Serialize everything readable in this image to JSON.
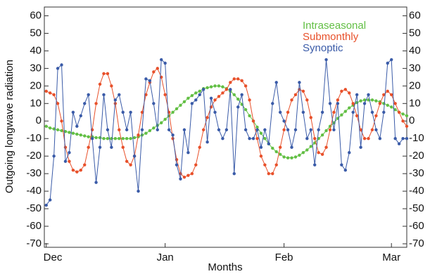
{
  "chart_data": {
    "type": "line",
    "xlabel": "Months",
    "ylabel": "Outgoing longwave radiation",
    "x": [
      0,
      1,
      2,
      3,
      4,
      5,
      6,
      7,
      8,
      9,
      10,
      11,
      12,
      13,
      14,
      15,
      16,
      17,
      18,
      19,
      20,
      21,
      22,
      23,
      24,
      25,
      26,
      27,
      28,
      29,
      30,
      31,
      32,
      33,
      34,
      35,
      36,
      37,
      38,
      39,
      40,
      41,
      42,
      43,
      44,
      45,
      46,
      47,
      48,
      49,
      50,
      51,
      52,
      53,
      54,
      55,
      56,
      57,
      58,
      59,
      60,
      61,
      62,
      63,
      64,
      65,
      66,
      67,
      68,
      69,
      70,
      71,
      72,
      73,
      74,
      75,
      76,
      77,
      78,
      79,
      80,
      81,
      82,
      83,
      84,
      85,
      86,
      87,
      88,
      89,
      90,
      91,
      92,
      93,
      94
    ],
    "xlim": [
      -0.5,
      94
    ],
    "xticks": [
      {
        "value": 0,
        "label": "Dec"
      },
      {
        "value": 31,
        "label": "Jan"
      },
      {
        "value": 62,
        "label": "Feb"
      },
      {
        "value": 90,
        "label": "Mar"
      }
    ],
    "ylim": [
      -72,
      65
    ],
    "yticks": [
      -70,
      -60,
      -50,
      -40,
      -30,
      -20,
      -10,
      0,
      10,
      20,
      30,
      40,
      50,
      60
    ],
    "legend": "upper right",
    "series": [
      {
        "name": "Intraseasonal",
        "color": "#62bf44",
        "values": [
          -3,
          -4,
          -4.5,
          -5,
          -5.5,
          -6,
          -6.5,
          -7,
          -7.5,
          -8,
          -8.5,
          -9,
          -9,
          -9.5,
          -9.5,
          -10,
          -10,
          -10,
          -10,
          -10,
          -10,
          -10,
          -10,
          -9.5,
          -9,
          -8,
          -7,
          -5.5,
          -4,
          -2.5,
          -1,
          1,
          3,
          5,
          7,
          9,
          11,
          13,
          14.5,
          16,
          17,
          18.5,
          19,
          19.5,
          20,
          20,
          19.5,
          18.5,
          17,
          15,
          12.5,
          9.5,
          6.5,
          3,
          0,
          -3.5,
          -7,
          -10,
          -13,
          -15.5,
          -17.5,
          -19,
          -20.5,
          -21,
          -21,
          -20.5,
          -19.5,
          -18,
          -16.5,
          -14.5,
          -12.5,
          -10,
          -8,
          -5.5,
          -3,
          -1,
          1.5,
          3.5,
          5.5,
          7.5,
          9,
          10.5,
          11.5,
          12,
          12,
          12,
          11.5,
          11,
          10,
          9,
          8,
          6.5,
          5,
          4,
          3
        ]
      },
      {
        "name": "Submonthly",
        "color": "#e8502a",
        "values": [
          17,
          16,
          15,
          10,
          0,
          -15,
          -23,
          -28,
          -29,
          -28,
          -25,
          -15,
          -5,
          10,
          21,
          27,
          27,
          20,
          10,
          -5,
          -15,
          -23,
          -25,
          -20,
          -8,
          5,
          15,
          22,
          28,
          30,
          25,
          15,
          5,
          -10,
          -22,
          -30,
          -32,
          -31,
          -30,
          -25,
          -15,
          -5,
          2,
          8,
          12,
          14,
          16,
          18,
          22,
          24,
          24,
          23,
          20,
          12,
          0,
          -10,
          -20,
          -25,
          -30,
          -30,
          -25,
          -15,
          -5,
          5,
          12,
          15,
          18,
          17,
          12,
          2,
          -10,
          -18,
          -19,
          -15,
          -5,
          5,
          12,
          17,
          18,
          16,
          10,
          3,
          -5,
          -10,
          -10,
          -5,
          3,
          10,
          15,
          17,
          15,
          10,
          5,
          0,
          -3
        ]
      },
      {
        "name": "Synoptic",
        "color": "#3a5ba8",
        "values": [
          -48,
          -45,
          -20,
          30,
          32,
          -23,
          -18,
          5,
          -3,
          3,
          10,
          15,
          -10,
          -35,
          -15,
          15,
          -5,
          -15,
          12,
          15,
          5,
          -5,
          5,
          -20,
          -40,
          -5,
          24,
          23,
          10,
          -5,
          35,
          33,
          -5,
          -8,
          -25,
          -33,
          -5,
          -18,
          10,
          12,
          15,
          18,
          -12,
          13,
          5,
          -5,
          -10,
          -5,
          18,
          -30,
          8,
          15,
          -5,
          -10,
          -10,
          -5,
          -15,
          -5,
          -13,
          10,
          22,
          5,
          0,
          -5,
          -15,
          -5,
          22,
          5,
          -10,
          -5,
          -25,
          -5,
          5,
          35,
          10,
          -5,
          10,
          -25,
          -28,
          -18,
          5,
          15,
          -15,
          10,
          15,
          5,
          -5,
          -10,
          5,
          33,
          35,
          -10,
          -13,
          -10,
          -10
        ]
      }
    ]
  }
}
